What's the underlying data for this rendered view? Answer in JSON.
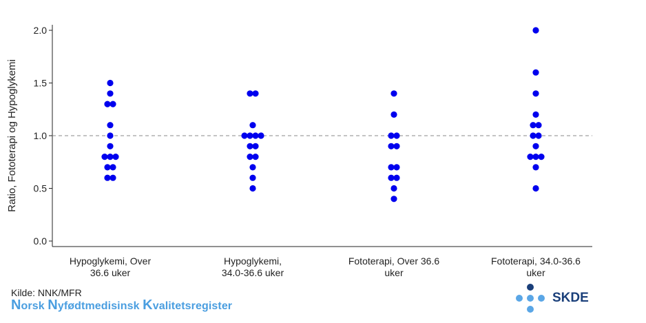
{
  "chart_data": {
    "type": "scatter",
    "ylabel": "Ratio, Fototerapi og Hypoglykemi",
    "xlabel": "",
    "ylim": [
      0,
      2.0
    ],
    "yticks": [
      "0.0",
      "0.5",
      "1.0",
      "1.5",
      "2.0"
    ],
    "reference_line": 1.0,
    "categories": [
      [
        "Hypoglykemi, Over",
        "36.6 uker"
      ],
      [
        "Hypoglykemi,",
        "34.0-36.6 uker"
      ],
      [
        "Fototerapi, Over 36.6",
        "uker"
      ],
      [
        "Fototerapi, 34.0-36.6",
        "uker"
      ]
    ],
    "values": [
      [
        1.5,
        1.4,
        1.3,
        1.3,
        1.1,
        1.0,
        0.9,
        0.8,
        0.8,
        0.8,
        0.7,
        0.7,
        0.6,
        0.6
      ],
      [
        1.4,
        1.4,
        1.1,
        1.0,
        1.0,
        1.0,
        1.0,
        0.9,
        0.9,
        0.8,
        0.8,
        0.7,
        0.6,
        0.5
      ],
      [
        1.4,
        1.2,
        1.0,
        1.0,
        0.9,
        0.9,
        0.7,
        0.7,
        0.6,
        0.6,
        0.5,
        0.4
      ],
      [
        2.0,
        1.6,
        1.4,
        1.2,
        1.1,
        1.1,
        1.0,
        1.0,
        0.9,
        0.8,
        0.8,
        0.8,
        0.7,
        0.5
      ]
    ],
    "marker_color": "#0000ee",
    "grid": false
  },
  "footer": {
    "source": "Kilde: NNK/MFR",
    "registry_parts": [
      {
        "text": "N",
        "big": true
      },
      {
        "text": "orsk ",
        "big": false
      },
      {
        "text": "N",
        "big": true
      },
      {
        "text": "yfødtmedisinsk ",
        "big": false
      },
      {
        "text": "K",
        "big": true
      },
      {
        "text": "valitetsregister",
        "big": false
      }
    ],
    "registry_color": "#4a9ee0",
    "logo_text": "SKDE",
    "logo_colors": {
      "dark": "#1a3f7a",
      "light": "#5aa6e6"
    }
  }
}
